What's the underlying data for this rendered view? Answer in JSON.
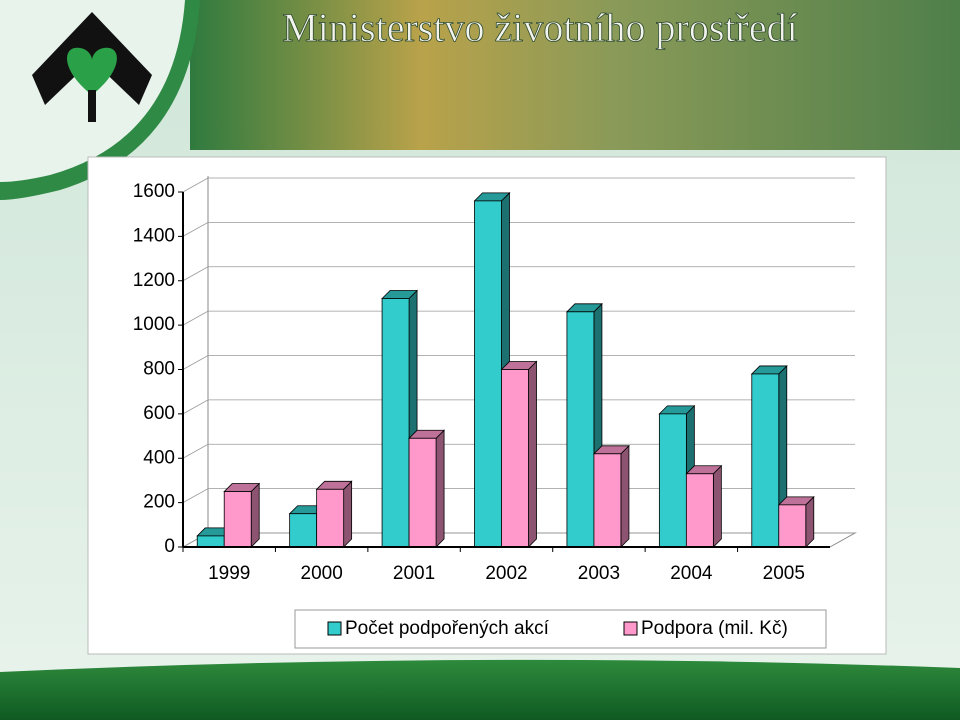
{
  "header": {
    "title": "Ministerstvo životního prostředí"
  },
  "chart_data": {
    "type": "bar3d",
    "categories": [
      "1999",
      "2000",
      "2001",
      "2002",
      "2003",
      "2004",
      "2005"
    ],
    "series": [
      {
        "name": "Počet podpořených akcí",
        "color": "#33cccc",
        "values": [
          50,
          150,
          1120,
          1560,
          1060,
          600,
          780
        ]
      },
      {
        "name": "Podpora (mil. Kč)",
        "color": "#ff99cc",
        "values": [
          250,
          260,
          490,
          800,
          420,
          330,
          190
        ]
      }
    ],
    "ylim": [
      0,
      1600
    ],
    "yticks": [
      0,
      200,
      400,
      600,
      800,
      1000,
      1200,
      1400,
      1600
    ],
    "grid": true
  }
}
